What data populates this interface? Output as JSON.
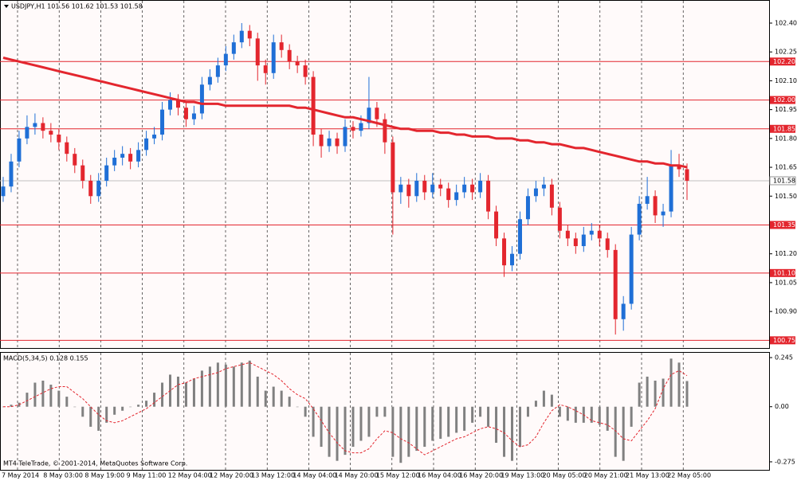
{
  "chart_data": [
    {
      "type": "candlestick",
      "title": "USDJPY,H1  101.56 101.62 101.53 101.58",
      "up_color": "#1f6fd6",
      "down_color": "#e3262e",
      "ylim": [
        100.71,
        102.516
      ],
      "yticks": [
        {
          "value": 102.4,
          "label": "102.40"
        },
        102.25,
        {
          "value": 102.1,
          "label": "102.10"
        },
        101.95,
        {
          "value": 101.8,
          "label": "101.80"
        },
        101.65,
        {
          "value": 101.5,
          "label": "101.50"
        },
        {
          "value": 101.2,
          "label": "101.20"
        },
        101.05,
        {
          "value": 100.9,
          "label": "100.90"
        }
      ],
      "levels": [
        {
          "value": 102.2,
          "label": "102.20"
        },
        {
          "value": 102.0,
          "label": "102.00"
        },
        101.85,
        101.35,
        {
          "value": 101.1,
          "label": "101.10"
        },
        100.75
      ],
      "level_color": "#e3262e",
      "current_price": 101.58,
      "x_labels": [
        "7 May 2014",
        "8 May 03:00",
        "8 May 19:00",
        "9 May 11:00",
        "12 May 04:00",
        "12 May 20:00",
        "13 May 12:00",
        "14 May 04:00",
        "14 May 20:00",
        "15 May 12:00",
        "16 May 04:00",
        "16 May 20:00",
        "19 May 13:00",
        "20 May 05:00",
        "20 May 21:00",
        "21 May 13:00",
        "22 May 05:00"
      ],
      "candles": [
        [
          101.5,
          101.6,
          101.47,
          101.55
        ],
        [
          101.55,
          101.72,
          101.52,
          101.68
        ],
        [
          101.68,
          101.84,
          101.65,
          101.8
        ],
        [
          101.8,
          101.92,
          101.77,
          101.86
        ],
        [
          101.86,
          101.93,
          101.82,
          101.88
        ],
        [
          101.88,
          101.91,
          101.8,
          101.84
        ],
        [
          101.84,
          101.88,
          101.78,
          101.82
        ],
        [
          101.82,
          101.85,
          101.74,
          101.78
        ],
        [
          101.78,
          101.81,
          101.68,
          101.72
        ],
        [
          101.72,
          101.75,
          101.62,
          101.66
        ],
        [
          101.66,
          101.69,
          101.54,
          101.58
        ],
        [
          101.58,
          101.61,
          101.46,
          101.5
        ],
        [
          101.5,
          101.62,
          101.47,
          101.58
        ],
        [
          101.58,
          101.7,
          101.55,
          101.66
        ],
        [
          101.66,
          101.74,
          101.63,
          101.7
        ],
        [
          101.7,
          101.76,
          101.66,
          101.72
        ],
        [
          101.72,
          101.75,
          101.64,
          101.68
        ],
        [
          101.68,
          101.78,
          101.65,
          101.74
        ],
        [
          101.74,
          101.84,
          101.71,
          101.8
        ],
        [
          101.8,
          101.86,
          101.77,
          101.82
        ],
        [
          101.82,
          101.99,
          101.79,
          101.95
        ],
        [
          101.95,
          102.04,
          101.92,
          102.0
        ],
        [
          102.0,
          102.03,
          101.92,
          101.96
        ],
        [
          101.96,
          101.99,
          101.86,
          101.9
        ],
        [
          101.9,
          101.97,
          101.87,
          101.93
        ],
        [
          101.93,
          102.12,
          101.9,
          102.08
        ],
        [
          102.08,
          102.16,
          102.05,
          102.12
        ],
        [
          102.12,
          102.22,
          102.09,
          102.18
        ],
        [
          102.18,
          102.28,
          102.15,
          102.24
        ],
        [
          102.24,
          102.34,
          102.21,
          102.3
        ],
        [
          102.3,
          102.4,
          102.27,
          102.36
        ],
        [
          102.36,
          102.39,
          102.28,
          102.32
        ],
        [
          102.32,
          102.35,
          102.1,
          102.18
        ],
        [
          102.18,
          102.21,
          102.08,
          102.14
        ],
        [
          102.14,
          102.34,
          102.11,
          102.3
        ],
        [
          102.3,
          102.34,
          102.22,
          102.26
        ],
        [
          102.26,
          102.29,
          102.16,
          102.2
        ],
        [
          102.2,
          102.23,
          102.14,
          102.18
        ],
        [
          102.18,
          102.21,
          102.08,
          102.12
        ],
        [
          102.12,
          102.15,
          101.76,
          101.82
        ],
        [
          101.82,
          101.85,
          101.7,
          101.76
        ],
        [
          101.76,
          101.84,
          101.73,
          101.8
        ],
        [
          101.8,
          101.83,
          101.72,
          101.76
        ],
        [
          101.76,
          101.9,
          101.73,
          101.86
        ],
        [
          101.86,
          101.89,
          101.8,
          101.84
        ],
        [
          101.84,
          101.92,
          101.81,
          101.88
        ],
        [
          101.88,
          102.12,
          101.85,
          101.96
        ],
        [
          101.96,
          101.99,
          101.86,
          101.9
        ],
        [
          101.9,
          101.93,
          101.72,
          101.78
        ],
        [
          101.78,
          101.81,
          101.3,
          101.52
        ],
        [
          101.52,
          101.6,
          101.46,
          101.56
        ],
        [
          101.56,
          101.59,
          101.44,
          101.5
        ],
        [
          101.5,
          101.62,
          101.47,
          101.58
        ],
        [
          101.58,
          101.61,
          101.48,
          101.52
        ],
        [
          101.52,
          101.62,
          101.49,
          101.56
        ],
        [
          101.56,
          101.59,
          101.5,
          101.54
        ],
        [
          101.54,
          101.57,
          101.44,
          101.48
        ],
        [
          101.48,
          101.56,
          101.45,
          101.52
        ],
        [
          101.52,
          101.6,
          101.49,
          101.56
        ],
        [
          101.56,
          101.59,
          101.48,
          101.52
        ],
        [
          101.52,
          101.62,
          101.49,
          101.58
        ],
        [
          101.58,
          101.61,
          101.38,
          101.42
        ],
        [
          101.42,
          101.45,
          101.24,
          101.28
        ],
        [
          101.28,
          101.31,
          101.08,
          101.14
        ],
        [
          101.14,
          101.24,
          101.11,
          101.2
        ],
        [
          101.2,
          101.42,
          101.17,
          101.38
        ],
        [
          101.38,
          101.54,
          101.35,
          101.5
        ],
        [
          101.5,
          101.58,
          101.47,
          101.54
        ],
        [
          101.54,
          101.6,
          101.5,
          101.56
        ],
        [
          101.56,
          101.59,
          101.4,
          101.44
        ],
        [
          101.44,
          101.47,
          101.28,
          101.32
        ],
        [
          101.32,
          101.35,
          101.24,
          101.28
        ],
        [
          101.28,
          101.31,
          101.2,
          101.24
        ],
        [
          101.24,
          101.34,
          101.21,
          101.3
        ],
        [
          101.3,
          101.36,
          101.27,
          101.32
        ],
        [
          101.32,
          101.35,
          101.24,
          101.28
        ],
        [
          101.28,
          101.31,
          101.18,
          101.22
        ],
        [
          101.22,
          101.25,
          100.78,
          100.86
        ],
        [
          100.86,
          100.98,
          100.8,
          100.94
        ],
        [
          100.94,
          101.34,
          100.91,
          101.3
        ],
        [
          101.3,
          101.5,
          101.27,
          101.46
        ],
        [
          101.46,
          101.6,
          101.43,
          101.5
        ],
        [
          101.5,
          101.53,
          101.36,
          101.4
        ],
        [
          101.4,
          101.46,
          101.34,
          101.42
        ],
        [
          101.42,
          101.74,
          101.39,
          101.66
        ],
        [
          101.66,
          101.72,
          101.6,
          101.64
        ],
        [
          101.64,
          101.67,
          101.48,
          101.58
        ]
      ],
      "ma": {
        "color": "#e3262e",
        "values": [
          102.22,
          102.21,
          102.2,
          102.19,
          102.18,
          102.17,
          102.16,
          102.15,
          102.14,
          102.13,
          102.12,
          102.11,
          102.1,
          102.09,
          102.08,
          102.07,
          102.06,
          102.05,
          102.04,
          102.03,
          102.02,
          102.01,
          102.0,
          101.99,
          101.99,
          101.98,
          101.98,
          101.98,
          101.97,
          101.97,
          101.97,
          101.97,
          101.97,
          101.97,
          101.97,
          101.97,
          101.97,
          101.96,
          101.96,
          101.95,
          101.94,
          101.93,
          101.92,
          101.91,
          101.91,
          101.9,
          101.89,
          101.88,
          101.87,
          101.86,
          101.85,
          101.85,
          101.84,
          101.84,
          101.84,
          101.83,
          101.83,
          101.82,
          101.82,
          101.81,
          101.81,
          101.81,
          101.8,
          101.8,
          101.8,
          101.79,
          101.79,
          101.78,
          101.78,
          101.77,
          101.77,
          101.76,
          101.75,
          101.75,
          101.74,
          101.73,
          101.72,
          101.71,
          101.7,
          101.69,
          101.68,
          101.68,
          101.67,
          101.67,
          101.66,
          101.66,
          101.65
        ]
      }
    },
    {
      "type": "macd",
      "title": "MACD(5,34,5) 0.128 0.155",
      "annotation": "MT4 TeleTrade, © 2001-2014, MetaQuotes Software Corp.",
      "ylim": [
        -0.315,
        0.269
      ],
      "yticks": [
        0.245,
        {
          "value": 0,
          "label": "0.00"
        },
        -0.275
      ],
      "histogram": {
        "color": "#808080",
        "values": [
          0.0,
          0.01,
          0.02,
          0.07,
          0.12,
          0.13,
          0.11,
          0.08,
          0.05,
          0.0,
          -0.05,
          -0.1,
          -0.12,
          -0.08,
          -0.04,
          -0.02,
          0.0,
          0.01,
          0.03,
          0.07,
          0.12,
          0.16,
          0.15,
          0.12,
          0.14,
          0.18,
          0.2,
          0.22,
          0.21,
          0.2,
          0.22,
          0.23,
          0.15,
          0.08,
          0.1,
          0.08,
          0.05,
          0.0,
          -0.05,
          -0.15,
          -0.2,
          -0.25,
          -0.27,
          -0.24,
          -0.2,
          -0.17,
          -0.15,
          -0.05,
          -0.05,
          -0.25,
          -0.28,
          -0.25,
          -0.22,
          -0.2,
          -0.17,
          -0.16,
          -0.15,
          -0.13,
          -0.12,
          -0.08,
          -0.05,
          -0.1,
          -0.18,
          -0.25,
          -0.27,
          -0.2,
          -0.05,
          0.03,
          0.08,
          0.06,
          -0.05,
          -0.07,
          -0.08,
          -0.08,
          -0.08,
          -0.09,
          -0.12,
          -0.25,
          -0.27,
          -0.1,
          0.12,
          0.15,
          0.13,
          0.14,
          0.24,
          0.22,
          0.128
        ]
      },
      "signal": {
        "color": "#e3262e",
        "values": [
          0.0,
          0.0,
          0.01,
          0.03,
          0.05,
          0.07,
          0.09,
          0.1,
          0.1,
          0.07,
          0.04,
          0.0,
          -0.04,
          -0.07,
          -0.08,
          -0.07,
          -0.05,
          -0.03,
          -0.01,
          0.02,
          0.05,
          0.08,
          0.11,
          0.12,
          0.14,
          0.15,
          0.16,
          0.17,
          0.19,
          0.2,
          0.21,
          0.22,
          0.2,
          0.18,
          0.16,
          0.13,
          0.09,
          0.06,
          0.04,
          -0.01,
          -0.07,
          -0.13,
          -0.18,
          -0.22,
          -0.23,
          -0.23,
          -0.21,
          -0.16,
          -0.12,
          -0.13,
          -0.16,
          -0.18,
          -0.21,
          -0.24,
          -0.22,
          -0.2,
          -0.18,
          -0.16,
          -0.15,
          -0.13,
          -0.11,
          -0.1,
          -0.11,
          -0.13,
          -0.17,
          -0.2,
          -0.19,
          -0.15,
          -0.08,
          -0.02,
          0.01,
          0.0,
          -0.02,
          -0.04,
          -0.07,
          -0.08,
          -0.09,
          -0.12,
          -0.16,
          -0.17,
          -0.12,
          -0.07,
          -0.01,
          0.09,
          0.16,
          0.18,
          0.155
        ]
      }
    }
  ]
}
